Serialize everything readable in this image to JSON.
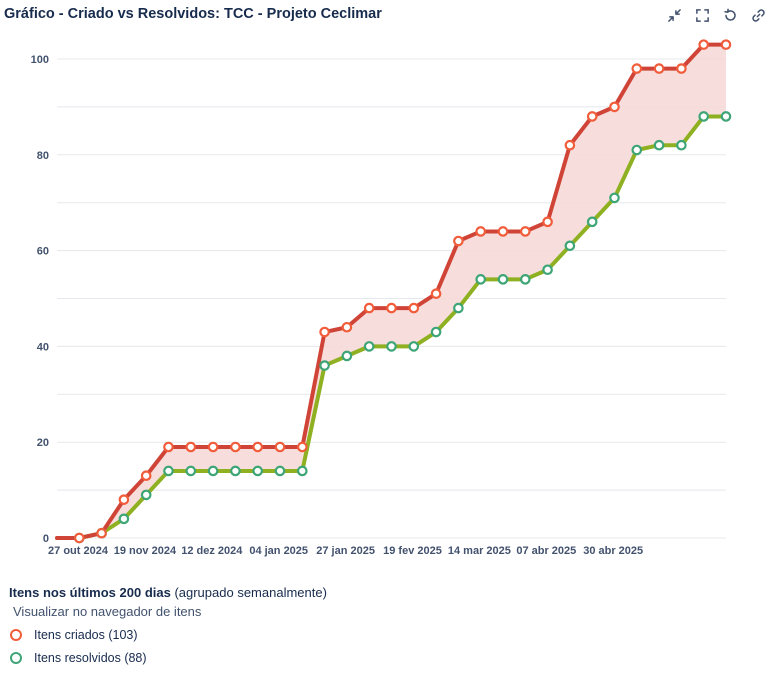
{
  "header": {
    "title": "Gráfico - Criado vs Resolvidos: TCC - Projeto Ceclimar"
  },
  "toolbar": {
    "icons": [
      "collapse-icon",
      "fullscreen-icon",
      "refresh-icon",
      "link-icon"
    ]
  },
  "legend": {
    "heading_bold": "Itens nos últimos 200 dias",
    "heading_rest": " (agrupado semanalmente)",
    "browser_link": "Visualizar no navegador de itens",
    "created_label": "Itens criados (103)",
    "resolved_label": "Itens resolvidos (88)"
  },
  "colors": {
    "created": "#d04437",
    "created_marker": "#f15c3a",
    "resolved": "#8eb021",
    "resolved_marker": "#3ea577",
    "fill": "#f6d8d6",
    "grid": "#e5e8ec"
  },
  "chart_data": {
    "type": "line",
    "x_tick_labels": [
      "27 out 2024",
      "19 nov 2024",
      "12 dez 2024",
      "04 jan 2025",
      "27 jan 2025",
      "19 fev 2025",
      "14 mar 2025",
      "07 abr 2025",
      "30 abr 2025"
    ],
    "ylim": [
      0,
      100
    ],
    "y_ticks": [
      0,
      20,
      40,
      60,
      80,
      100
    ],
    "grid": true,
    "legend_position": "bottom-left",
    "series": [
      {
        "name": "Itens criados (103)",
        "values": [
          0,
          0,
          1,
          8,
          13,
          19,
          19,
          19,
          19,
          19,
          19,
          19,
          43,
          44,
          48,
          48,
          48,
          51,
          62,
          64,
          64,
          64,
          66,
          82,
          88,
          90,
          98,
          98,
          98,
          103,
          103
        ]
      },
      {
        "name": "Itens resolvidos (88)",
        "values": [
          0,
          0,
          1,
          4,
          9,
          14,
          14,
          14,
          14,
          14,
          14,
          14,
          36,
          38,
          40,
          40,
          40,
          43,
          48,
          54,
          54,
          54,
          56,
          61,
          66,
          71,
          81,
          82,
          82,
          88,
          88
        ]
      }
    ]
  }
}
